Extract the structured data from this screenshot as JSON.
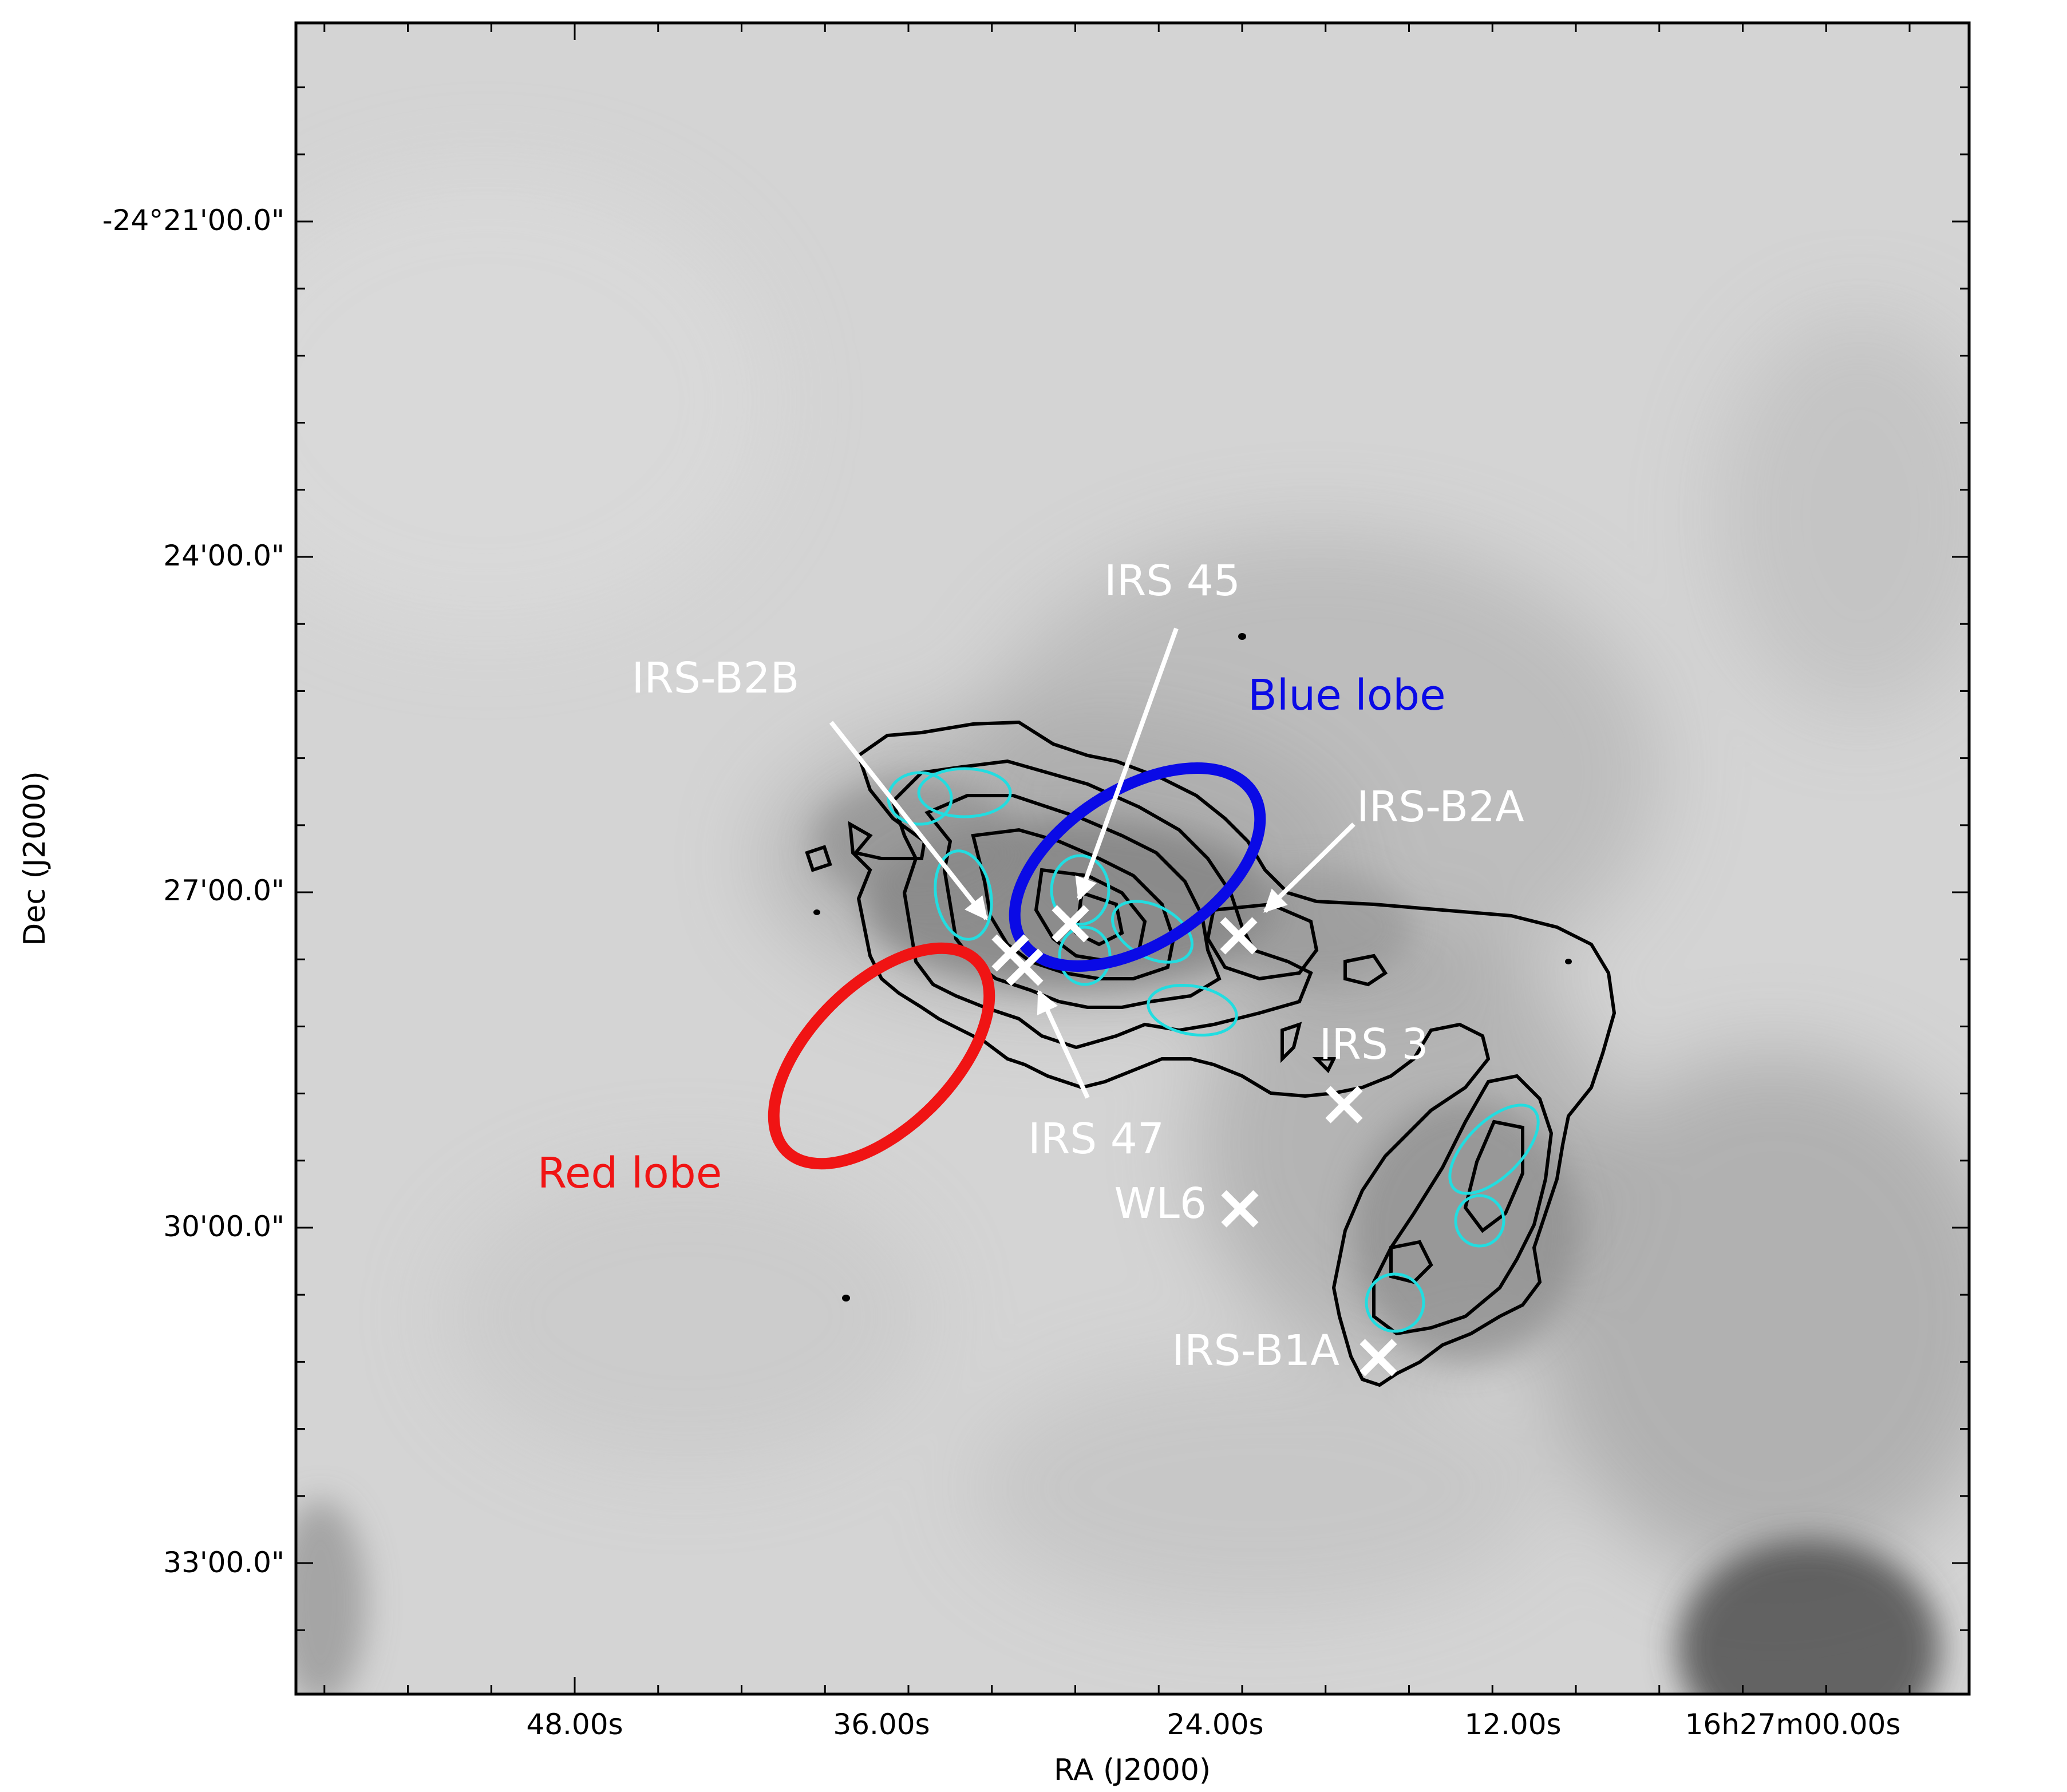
{
  "figure": {
    "xlabel": "RA (J2000)",
    "ylabel": "Dec (J2000)",
    "ra_ticks": [
      "48.00s",
      "36.00s",
      "24.00s",
      "12.00s",
      "16h27m00.00s"
    ],
    "dec_ticks": [
      "-24°21'00.0\"",
      "24'00.0\"",
      "27'00.0\"",
      "30'00.0\"",
      "33'00.0\""
    ],
    "sources": [
      {
        "name": "IRS 45"
      },
      {
        "name": "IRS-B2B"
      },
      {
        "name": "IRS-B2A"
      },
      {
        "name": "IRS 47"
      },
      {
        "name": "IRS 3"
      },
      {
        "name": "WL6"
      },
      {
        "name": "IRS-B1A"
      }
    ],
    "lobes": [
      {
        "name": "Blue lobe",
        "color": "#0a0ae6"
      },
      {
        "name": "Red lobe",
        "color": "#f01414"
      }
    ],
    "colors": {
      "marker": "#ffffff",
      "contour": "#000000",
      "clump": "#22dde0"
    }
  }
}
